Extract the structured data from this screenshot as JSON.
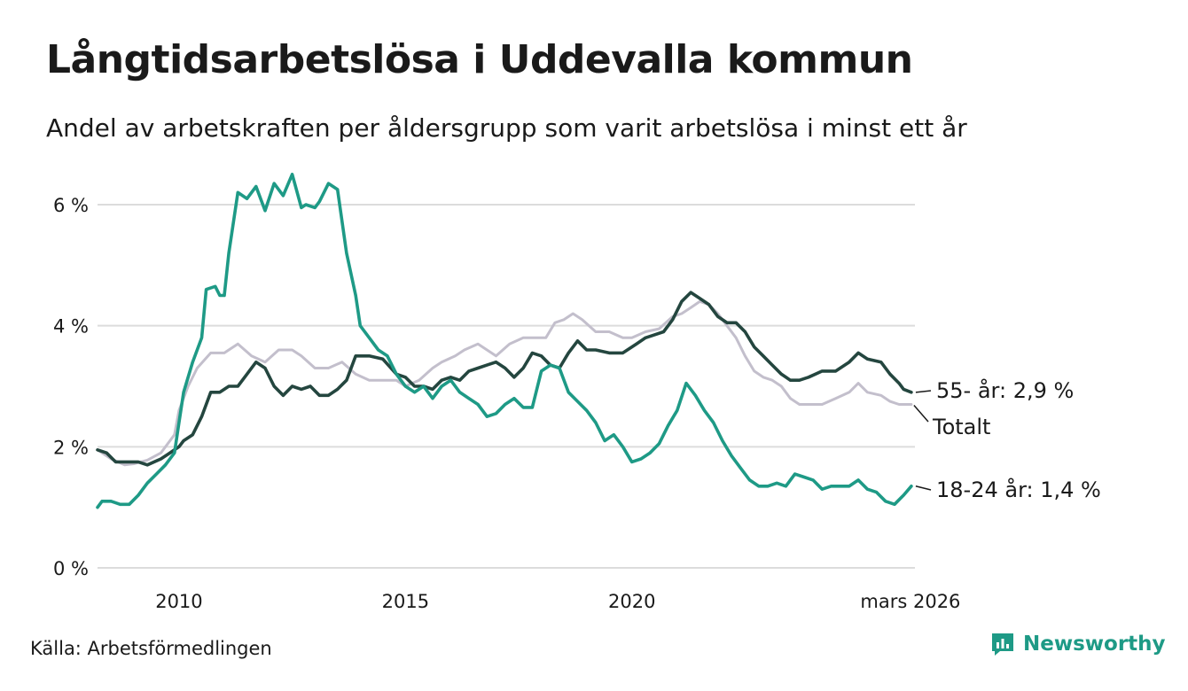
{
  "title": "Långtidsarbetslösa i Uddevalla kommun",
  "subtitle": "Andel av arbetskraften per åldersgrupp som varit arbetslösa i minst ett år",
  "source": "Källa: Arbetsförmedlingen",
  "brand": "Newsworthy",
  "colors": {
    "youth": "#1e9a86",
    "senior": "#24463f",
    "total": "#c3bfcc",
    "grid": "#dcdcdc"
  },
  "chart_data": {
    "type": "line",
    "xlim": [
      2008.2,
      2026.25
    ],
    "ylim": [
      0,
      6.6
    ],
    "yticks": [
      {
        "value": 0,
        "label": "0 %"
      },
      {
        "value": 2,
        "label": "2 %"
      },
      {
        "value": 4,
        "label": "4 %"
      },
      {
        "value": 6,
        "label": "6 %"
      }
    ],
    "xticks": [
      {
        "value": 2010,
        "label": "2010"
      },
      {
        "value": 2015,
        "label": "2015"
      },
      {
        "value": 2020,
        "label": "2020"
      },
      {
        "value": 2026.17,
        "label": "mars 2026"
      }
    ],
    "series": [
      {
        "name": "Totalt",
        "color_key": "total",
        "end_label": "Totalt",
        "points": [
          [
            2008.2,
            1.95
          ],
          [
            2008.5,
            1.8
          ],
          [
            2008.8,
            1.7
          ],
          [
            2009.0,
            1.72
          ],
          [
            2009.3,
            1.78
          ],
          [
            2009.6,
            1.9
          ],
          [
            2009.9,
            2.2
          ],
          [
            2010.0,
            2.6
          ],
          [
            2010.2,
            3.0
          ],
          [
            2010.4,
            3.3
          ],
          [
            2010.7,
            3.55
          ],
          [
            2011.0,
            3.55
          ],
          [
            2011.3,
            3.7
          ],
          [
            2011.6,
            3.5
          ],
          [
            2011.9,
            3.4
          ],
          [
            2012.2,
            3.6
          ],
          [
            2012.5,
            3.6
          ],
          [
            2012.7,
            3.5
          ],
          [
            2013.0,
            3.3
          ],
          [
            2013.3,
            3.3
          ],
          [
            2013.6,
            3.4
          ],
          [
            2013.9,
            3.2
          ],
          [
            2014.2,
            3.1
          ],
          [
            2014.5,
            3.1
          ],
          [
            2014.8,
            3.1
          ],
          [
            2015.0,
            3.0
          ],
          [
            2015.3,
            3.1
          ],
          [
            2015.6,
            3.3
          ],
          [
            2015.8,
            3.4
          ],
          [
            2016.1,
            3.5
          ],
          [
            2016.3,
            3.6
          ],
          [
            2016.6,
            3.7
          ],
          [
            2016.8,
            3.6
          ],
          [
            2017.0,
            3.5
          ],
          [
            2017.3,
            3.7
          ],
          [
            2017.6,
            3.8
          ],
          [
            2017.9,
            3.8
          ],
          [
            2018.1,
            3.8
          ],
          [
            2018.3,
            4.05
          ],
          [
            2018.5,
            4.1
          ],
          [
            2018.7,
            4.2
          ],
          [
            2018.9,
            4.1
          ],
          [
            2019.2,
            3.9
          ],
          [
            2019.5,
            3.9
          ],
          [
            2019.8,
            3.8
          ],
          [
            2020.0,
            3.8
          ],
          [
            2020.3,
            3.9
          ],
          [
            2020.6,
            3.95
          ],
          [
            2020.9,
            4.15
          ],
          [
            2021.1,
            4.2
          ],
          [
            2021.3,
            4.3
          ],
          [
            2021.5,
            4.4
          ],
          [
            2021.7,
            4.35
          ],
          [
            2021.9,
            4.2
          ],
          [
            2022.1,
            4.0
          ],
          [
            2022.3,
            3.8
          ],
          [
            2022.5,
            3.5
          ],
          [
            2022.7,
            3.25
          ],
          [
            2022.9,
            3.15
          ],
          [
            2023.1,
            3.1
          ],
          [
            2023.3,
            3.0
          ],
          [
            2023.5,
            2.8
          ],
          [
            2023.7,
            2.7
          ],
          [
            2023.9,
            2.7
          ],
          [
            2024.2,
            2.7
          ],
          [
            2024.5,
            2.8
          ],
          [
            2024.8,
            2.9
          ],
          [
            2025.0,
            3.05
          ],
          [
            2025.2,
            2.9
          ],
          [
            2025.5,
            2.85
          ],
          [
            2025.7,
            2.75
          ],
          [
            2025.9,
            2.7
          ],
          [
            2026.17,
            2.7
          ]
        ]
      },
      {
        "name": "55- år",
        "color_key": "senior",
        "end_label": "55- år: 2,9 %",
        "points": [
          [
            2008.2,
            1.95
          ],
          [
            2008.4,
            1.9
          ],
          [
            2008.6,
            1.75
          ],
          [
            2008.9,
            1.75
          ],
          [
            2009.1,
            1.75
          ],
          [
            2009.3,
            1.7
          ],
          [
            2009.6,
            1.8
          ],
          [
            2009.8,
            1.9
          ],
          [
            2010.0,
            2.0
          ],
          [
            2010.1,
            2.1
          ],
          [
            2010.3,
            2.2
          ],
          [
            2010.5,
            2.5
          ],
          [
            2010.7,
            2.9
          ],
          [
            2010.9,
            2.9
          ],
          [
            2011.1,
            3.0
          ],
          [
            2011.3,
            3.0
          ],
          [
            2011.5,
            3.2
          ],
          [
            2011.7,
            3.4
          ],
          [
            2011.9,
            3.3
          ],
          [
            2012.1,
            3.0
          ],
          [
            2012.3,
            2.85
          ],
          [
            2012.5,
            3.0
          ],
          [
            2012.7,
            2.95
          ],
          [
            2012.9,
            3.0
          ],
          [
            2013.1,
            2.85
          ],
          [
            2013.3,
            2.85
          ],
          [
            2013.5,
            2.95
          ],
          [
            2013.7,
            3.1
          ],
          [
            2013.9,
            3.5
          ],
          [
            2014.2,
            3.5
          ],
          [
            2014.5,
            3.45
          ],
          [
            2014.8,
            3.2
          ],
          [
            2015.0,
            3.15
          ],
          [
            2015.2,
            3.0
          ],
          [
            2015.4,
            3.0
          ],
          [
            2015.6,
            2.95
          ],
          [
            2015.8,
            3.1
          ],
          [
            2016.0,
            3.15
          ],
          [
            2016.2,
            3.1
          ],
          [
            2016.4,
            3.25
          ],
          [
            2016.6,
            3.3
          ],
          [
            2016.8,
            3.35
          ],
          [
            2017.0,
            3.4
          ],
          [
            2017.2,
            3.3
          ],
          [
            2017.4,
            3.15
          ],
          [
            2017.6,
            3.3
          ],
          [
            2017.8,
            3.55
          ],
          [
            2018.0,
            3.5
          ],
          [
            2018.2,
            3.35
          ],
          [
            2018.4,
            3.3
          ],
          [
            2018.6,
            3.55
          ],
          [
            2018.8,
            3.75
          ],
          [
            2019.0,
            3.6
          ],
          [
            2019.2,
            3.6
          ],
          [
            2019.5,
            3.55
          ],
          [
            2019.8,
            3.55
          ],
          [
            2020.1,
            3.7
          ],
          [
            2020.3,
            3.8
          ],
          [
            2020.5,
            3.85
          ],
          [
            2020.7,
            3.9
          ],
          [
            2020.9,
            4.1
          ],
          [
            2021.1,
            4.4
          ],
          [
            2021.3,
            4.55
          ],
          [
            2021.5,
            4.45
          ],
          [
            2021.7,
            4.35
          ],
          [
            2021.9,
            4.15
          ],
          [
            2022.1,
            4.05
          ],
          [
            2022.3,
            4.05
          ],
          [
            2022.5,
            3.9
          ],
          [
            2022.7,
            3.65
          ],
          [
            2022.9,
            3.5
          ],
          [
            2023.1,
            3.35
          ],
          [
            2023.3,
            3.2
          ],
          [
            2023.5,
            3.1
          ],
          [
            2023.7,
            3.1
          ],
          [
            2023.9,
            3.15
          ],
          [
            2024.2,
            3.25
          ],
          [
            2024.5,
            3.25
          ],
          [
            2024.8,
            3.4
          ],
          [
            2025.0,
            3.55
          ],
          [
            2025.2,
            3.45
          ],
          [
            2025.5,
            3.4
          ],
          [
            2025.7,
            3.2
          ],
          [
            2025.9,
            3.05
          ],
          [
            2026.0,
            2.95
          ],
          [
            2026.17,
            2.9
          ]
        ]
      },
      {
        "name": "18-24 år",
        "color_key": "youth",
        "end_label": "18-24 år: 1,4 %",
        "points": [
          [
            2008.2,
            1.0
          ],
          [
            2008.3,
            1.1
          ],
          [
            2008.5,
            1.1
          ],
          [
            2008.7,
            1.05
          ],
          [
            2008.9,
            1.05
          ],
          [
            2009.1,
            1.2
          ],
          [
            2009.3,
            1.4
          ],
          [
            2009.5,
            1.55
          ],
          [
            2009.7,
            1.7
          ],
          [
            2009.9,
            1.9
          ],
          [
            2010.0,
            2.4
          ],
          [
            2010.1,
            2.9
          ],
          [
            2010.3,
            3.4
          ],
          [
            2010.5,
            3.8
          ],
          [
            2010.6,
            4.6
          ],
          [
            2010.8,
            4.65
          ],
          [
            2010.9,
            4.5
          ],
          [
            2011.0,
            4.5
          ],
          [
            2011.1,
            5.2
          ],
          [
            2011.3,
            6.2
          ],
          [
            2011.5,
            6.1
          ],
          [
            2011.7,
            6.3
          ],
          [
            2011.9,
            5.9
          ],
          [
            2012.1,
            6.35
          ],
          [
            2012.3,
            6.15
          ],
          [
            2012.5,
            6.5
          ],
          [
            2012.7,
            5.95
          ],
          [
            2012.8,
            6.0
          ],
          [
            2013.0,
            5.95
          ],
          [
            2013.1,
            6.05
          ],
          [
            2013.3,
            6.35
          ],
          [
            2013.5,
            6.25
          ],
          [
            2013.7,
            5.2
          ],
          [
            2013.9,
            4.5
          ],
          [
            2014.0,
            4.0
          ],
          [
            2014.2,
            3.8
          ],
          [
            2014.4,
            3.6
          ],
          [
            2014.6,
            3.5
          ],
          [
            2014.8,
            3.2
          ],
          [
            2015.0,
            3.0
          ],
          [
            2015.2,
            2.9
          ],
          [
            2015.4,
            3.0
          ],
          [
            2015.6,
            2.8
          ],
          [
            2015.8,
            3.0
          ],
          [
            2016.0,
            3.1
          ],
          [
            2016.2,
            2.9
          ],
          [
            2016.4,
            2.8
          ],
          [
            2016.6,
            2.7
          ],
          [
            2016.8,
            2.5
          ],
          [
            2017.0,
            2.55
          ],
          [
            2017.2,
            2.7
          ],
          [
            2017.4,
            2.8
          ],
          [
            2017.6,
            2.65
          ],
          [
            2017.8,
            2.65
          ],
          [
            2018.0,
            3.25
          ],
          [
            2018.2,
            3.35
          ],
          [
            2018.4,
            3.3
          ],
          [
            2018.6,
            2.9
          ],
          [
            2018.8,
            2.75
          ],
          [
            2019.0,
            2.6
          ],
          [
            2019.2,
            2.4
          ],
          [
            2019.4,
            2.1
          ],
          [
            2019.6,
            2.2
          ],
          [
            2019.8,
            2.0
          ],
          [
            2020.0,
            1.75
          ],
          [
            2020.2,
            1.8
          ],
          [
            2020.4,
            1.9
          ],
          [
            2020.6,
            2.05
          ],
          [
            2020.8,
            2.35
          ],
          [
            2021.0,
            2.6
          ],
          [
            2021.2,
            3.05
          ],
          [
            2021.4,
            2.85
          ],
          [
            2021.6,
            2.6
          ],
          [
            2021.8,
            2.4
          ],
          [
            2022.0,
            2.1
          ],
          [
            2022.2,
            1.85
          ],
          [
            2022.4,
            1.65
          ],
          [
            2022.6,
            1.45
          ],
          [
            2022.8,
            1.35
          ],
          [
            2023.0,
            1.35
          ],
          [
            2023.2,
            1.4
          ],
          [
            2023.4,
            1.35
          ],
          [
            2023.6,
            1.55
          ],
          [
            2023.8,
            1.5
          ],
          [
            2024.0,
            1.45
          ],
          [
            2024.2,
            1.3
          ],
          [
            2024.4,
            1.35
          ],
          [
            2024.6,
            1.35
          ],
          [
            2024.8,
            1.35
          ],
          [
            2025.0,
            1.45
          ],
          [
            2025.2,
            1.3
          ],
          [
            2025.4,
            1.25
          ],
          [
            2025.6,
            1.1
          ],
          [
            2025.8,
            1.05
          ],
          [
            2026.0,
            1.2
          ],
          [
            2026.17,
            1.35
          ]
        ]
      }
    ]
  }
}
